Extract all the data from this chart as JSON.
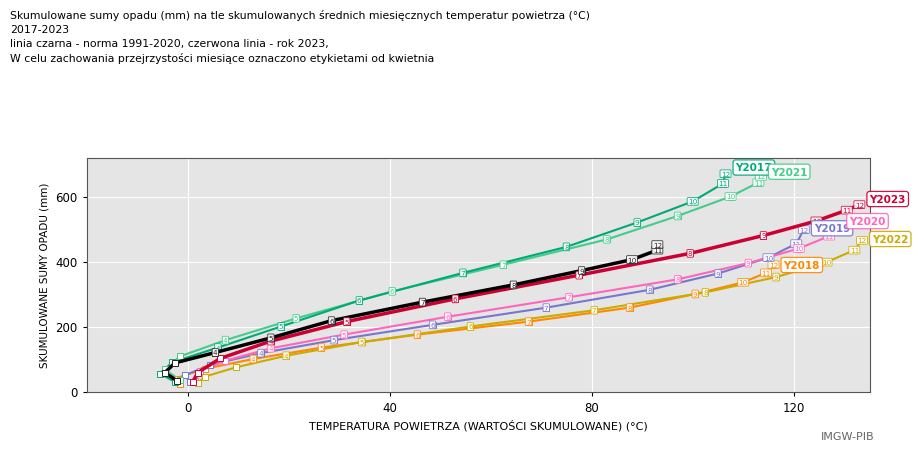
{
  "title_line1": "Skumulowane sumy opadu (mm) na tle skumulowanych średnich miesięcznych temperatur powietrza (°C)",
  "title_line2": "2017-2023",
  "title_line3": "linia czarna - norma 1991-2020, czerwona linia - rok 2023,",
  "title_line4": "W celu zachowania przejrzystości miesiące oznaczono etykietami od kwietnia",
  "xlabel": "TEMPERATURA POWIETRZA (WARTOŚCI SKUMULOWANE) (°C)",
  "ylabel": "SKUMULOWANE SUMY OPADU (mm)",
  "imgw_label": "IMGW-PIB",
  "bg_color": "#e5e5e5",
  "xlim": [
    -20,
    135
  ],
  "ylim": [
    0,
    720
  ],
  "xticks": [
    0,
    40,
    80,
    120
  ],
  "yticks": [
    0,
    200,
    400,
    600
  ],
  "years": {
    "norm": {
      "color": "#000000",
      "lw": 2.5,
      "label": "Norma",
      "temps": [
        -2.0,
        -4.5,
        -2.5,
        5.5,
        16.5,
        28.5,
        46.5,
        64.5,
        78.0,
        88.0,
        93.0,
        93.0
      ],
      "precip": [
        32,
        58,
        88,
        120,
        165,
        218,
        275,
        328,
        372,
        406,
        435,
        452
      ]
    },
    "Y2017": {
      "color": "#00aa77",
      "lw": 1.5,
      "label": "Y2017",
      "temps": [
        -2.5,
        -5.5,
        -3.0,
        6.0,
        18.5,
        34.0,
        54.5,
        75.0,
        89.0,
        100.0,
        106.0,
        106.5
      ],
      "precip": [
        30,
        55,
        90,
        135,
        200,
        280,
        365,
        445,
        520,
        585,
        640,
        670
      ]
    },
    "Y2018": {
      "color": "#ff8800",
      "lw": 1.5,
      "label": "Y2018",
      "temps": [
        -1.5,
        -2.5,
        3.5,
        13.0,
        26.5,
        45.5,
        67.5,
        87.5,
        100.5,
        110.0,
        114.5,
        116.0
      ],
      "precip": [
        22,
        40,
        70,
        100,
        135,
        175,
        215,
        258,
        300,
        336,
        365,
        390
      ]
    },
    "Y2019": {
      "color": "#7777cc",
      "lw": 1.5,
      "label": "Y2019",
      "temps": [
        0.5,
        -0.5,
        4.5,
        14.5,
        29.0,
        48.5,
        71.0,
        91.5,
        105.0,
        115.0,
        120.5,
        122.0
      ],
      "precip": [
        28,
        50,
        82,
        118,
        158,
        205,
        258,
        313,
        363,
        412,
        455,
        498
      ]
    },
    "Y2020": {
      "color": "#ff66bb",
      "lw": 1.5,
      "label": "Y2020",
      "temps": [
        1.5,
        2.5,
        7.5,
        16.5,
        31.0,
        51.5,
        75.5,
        97.0,
        111.0,
        121.0,
        127.0,
        129.0
      ],
      "precip": [
        33,
        62,
        95,
        133,
        175,
        230,
        290,
        345,
        395,
        440,
        478,
        510
      ]
    },
    "Y2021": {
      "color": "#44cc88",
      "lw": 1.5,
      "label": "Y2021",
      "temps": [
        -1.5,
        -4.5,
        -1.5,
        7.5,
        21.5,
        40.5,
        62.5,
        83.0,
        97.0,
        107.5,
        113.0,
        113.5
      ],
      "precip": [
        35,
        68,
        108,
        158,
        225,
        308,
        390,
        468,
        540,
        600,
        643,
        662
      ]
    },
    "Y2022": {
      "color": "#ccaa00",
      "lw": 1.5,
      "label": "Y2022",
      "temps": [
        2.0,
        3.5,
        9.5,
        19.5,
        34.5,
        56.0,
        80.5,
        102.5,
        116.5,
        126.5,
        132.0,
        133.5
      ],
      "precip": [
        26,
        46,
        74,
        110,
        152,
        200,
        250,
        305,
        352,
        398,
        435,
        465
      ]
    },
    "Y2023": {
      "color": "#cc0033",
      "lw": 2.5,
      "label": "Y2023",
      "temps": [
        1.0,
        2.0,
        6.5,
        16.5,
        31.5,
        53.0,
        77.5,
        99.5,
        114.0,
        124.5,
        130.5,
        133.0
      ],
      "precip": [
        28,
        58,
        102,
        155,
        215,
        285,
        358,
        425,
        480,
        525,
        558,
        575
      ]
    }
  },
  "label_from_month": 4
}
